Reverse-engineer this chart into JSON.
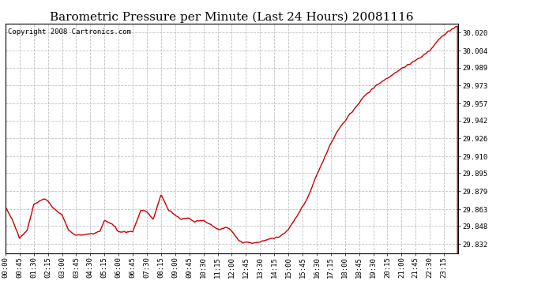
{
  "title": "Barometric Pressure per Minute (Last 24 Hours) 20081116",
  "copyright": "Copyright 2008 Cartronics.com",
  "line_color": "#cc0000",
  "background_color": "#ffffff",
  "grid_color": "#bbbbbb",
  "yticks": [
    29.832,
    29.848,
    29.863,
    29.879,
    29.895,
    29.91,
    29.926,
    29.942,
    29.957,
    29.973,
    29.989,
    30.004,
    30.02
  ],
  "ylim": [
    29.824,
    30.028
  ],
  "xtick_labels": [
    "00:00",
    "00:45",
    "01:30",
    "02:15",
    "03:00",
    "03:45",
    "04:30",
    "05:15",
    "06:00",
    "06:45",
    "07:30",
    "08:15",
    "09:00",
    "09:45",
    "10:30",
    "11:15",
    "12:00",
    "12:45",
    "13:30",
    "14:15",
    "15:00",
    "15:45",
    "16:30",
    "17:15",
    "18:00",
    "18:45",
    "19:30",
    "20:15",
    "21:00",
    "21:45",
    "22:30",
    "23:15"
  ],
  "title_fontsize": 11,
  "tick_fontsize": 6.5,
  "copyright_fontsize": 6.5,
  "keypoints_x": [
    0,
    25,
    45,
    70,
    90,
    120,
    135,
    155,
    180,
    200,
    220,
    240,
    270,
    300,
    315,
    340,
    360,
    390,
    405,
    430,
    450,
    470,
    495,
    520,
    540,
    560,
    580,
    600,
    630,
    660,
    680,
    700,
    720,
    740,
    755,
    770,
    780,
    790,
    810,
    830,
    855,
    880,
    900,
    930,
    960,
    990,
    1020,
    1050,
    1080,
    1110,
    1140,
    1170,
    1200,
    1230,
    1260,
    1290,
    1320,
    1350,
    1380,
    1410,
    1439
  ],
  "keypoints_y": [
    29.865,
    29.852,
    29.837,
    29.845,
    29.867,
    29.872,
    29.871,
    29.863,
    29.858,
    29.845,
    29.84,
    29.84,
    29.841,
    29.843,
    29.853,
    29.85,
    29.843,
    29.843,
    29.843,
    29.862,
    29.861,
    29.854,
    29.876,
    29.862,
    29.858,
    29.854,
    29.855,
    29.852,
    29.853,
    29.848,
    29.845,
    29.847,
    29.844,
    29.836,
    29.833,
    29.834,
    29.833,
    29.833,
    29.834,
    29.836,
    29.837,
    29.84,
    29.845,
    29.858,
    29.872,
    29.893,
    29.912,
    29.93,
    29.942,
    29.952,
    29.963,
    29.971,
    29.977,
    29.982,
    29.988,
    29.993,
    29.998,
    30.004,
    30.015,
    30.021,
    30.026
  ]
}
